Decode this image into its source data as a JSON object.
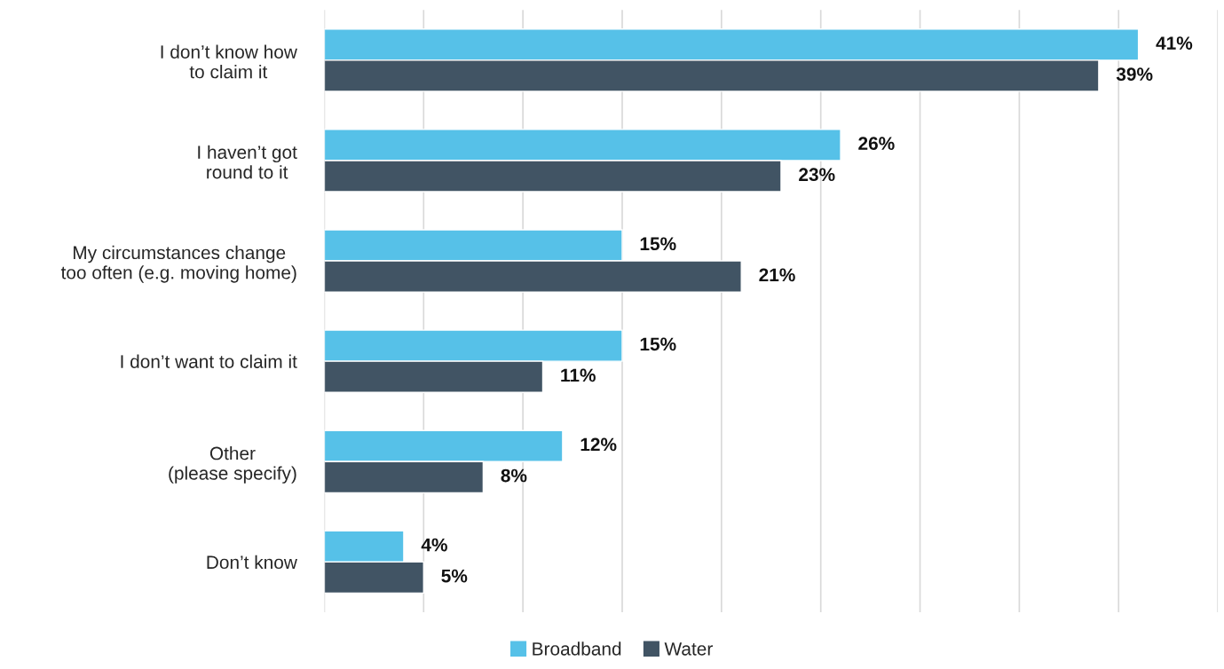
{
  "chart_data": {
    "type": "bar",
    "orientation": "horizontal",
    "categories": [
      "I don’t know how\nto claim it",
      "I haven’t got\nround to it",
      "My circumstances change\ntoo often (e.g. moving home)",
      "I don’t want to claim it",
      "Other\n(please specify)",
      "Don’t know"
    ],
    "series": [
      {
        "name": "Broadband",
        "color": "#56c1e8",
        "values": [
          41,
          26,
          15,
          15,
          12,
          4
        ],
        "value_labels": [
          "41%",
          "26%",
          "15%",
          "15%",
          "12%",
          "4%"
        ]
      },
      {
        "name": "Water",
        "color": "#415464",
        "values": [
          39,
          23,
          21,
          11,
          8,
          5
        ],
        "value_labels": [
          "39%",
          "23%",
          "21%",
          "11%",
          "8%",
          "5%"
        ]
      }
    ],
    "xlim": [
      0,
      45
    ],
    "xticks": [
      {
        "value": 0,
        "label": null
      },
      {
        "value": 5,
        "label": null
      },
      {
        "value": 10,
        "label": null
      },
      {
        "value": 15,
        "label": null
      },
      {
        "value": 20,
        "label": null
      },
      {
        "value": 25,
        "label": null
      },
      {
        "value": 30,
        "label": null
      },
      {
        "value": 35,
        "label": null
      },
      {
        "value": 40,
        "label": null
      },
      {
        "value": 45,
        "label": null
      }
    ],
    "grid": "x",
    "legend": "bottom",
    "tick_labels": "y"
  }
}
